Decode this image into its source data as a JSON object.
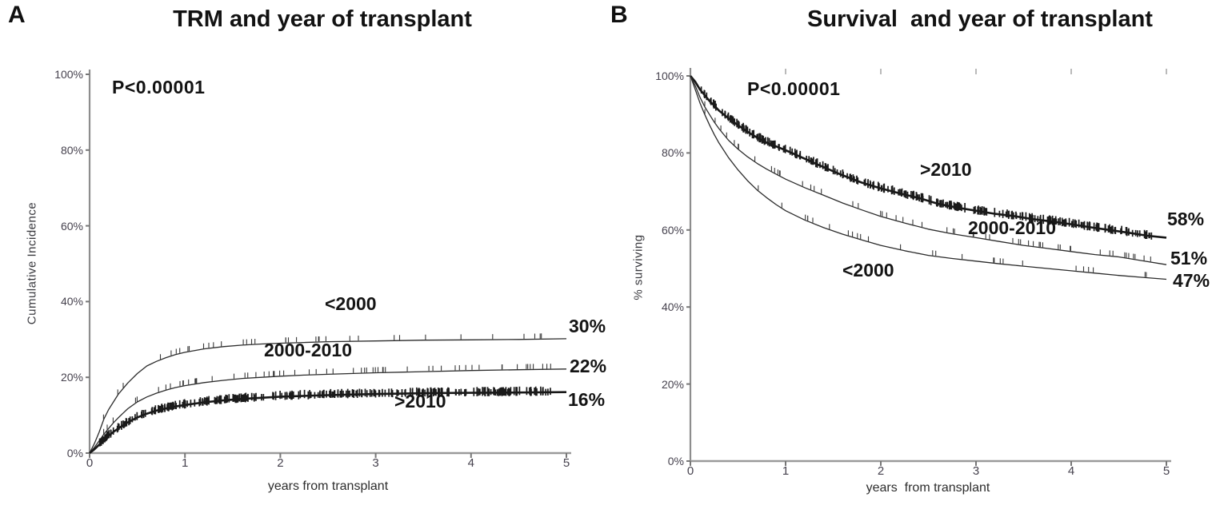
{
  "chart_data": [
    {
      "type": "line",
      "panel_label": "A",
      "title": "TRM and year of transplant",
      "subtitle": "P<0.00001",
      "xlabel": "years from transplant",
      "ylabel": "Cumulative Incidence",
      "xlim": [
        0,
        5
      ],
      "ylim": [
        0,
        100
      ],
      "x_ticks": [
        0,
        1,
        2,
        3,
        4,
        5
      ],
      "x_tick_labels": [
        "0",
        "1",
        "2",
        "3",
        "4",
        "5"
      ],
      "y_ticks": [
        0,
        20,
        40,
        60,
        80,
        100
      ],
      "y_tick_labels": [
        "0%",
        "20%",
        "40%",
        "60%",
        "80%",
        "100%"
      ],
      "grid": false,
      "top_ticks": false,
      "legend_position": "inline-labels",
      "series": [
        {
          "name": "<2000",
          "end_label": "30%",
          "end_value": 30,
          "censor_marks": "sparse",
          "points": [
            [
              0,
              0
            ],
            [
              0.05,
              2.5
            ],
            [
              0.1,
              5.5
            ],
            [
              0.15,
              9
            ],
            [
              0.2,
              11.5
            ],
            [
              0.25,
              13.5
            ],
            [
              0.3,
              15.5
            ],
            [
              0.35,
              17
            ],
            [
              0.4,
              18.5
            ],
            [
              0.5,
              21
            ],
            [
              0.6,
              23
            ],
            [
              0.7,
              24.2
            ],
            [
              0.8,
              25.2
            ],
            [
              0.9,
              26
            ],
            [
              1,
              26.6
            ],
            [
              1.2,
              27.5
            ],
            [
              1.4,
              28.1
            ],
            [
              1.6,
              28.5
            ],
            [
              1.8,
              28.8
            ],
            [
              2,
              29
            ],
            [
              2.25,
              29.2
            ],
            [
              2.5,
              29.4
            ],
            [
              3,
              29.6
            ],
            [
              3.5,
              29.8
            ],
            [
              4,
              29.9
            ],
            [
              4.5,
              30
            ],
            [
              5,
              30.2
            ]
          ]
        },
        {
          "name": "2000-2010",
          "end_label": "22%",
          "end_value": 22,
          "censor_marks": "sparse",
          "points": [
            [
              0,
              0
            ],
            [
              0.05,
              1.5
            ],
            [
              0.1,
              3.2
            ],
            [
              0.15,
              5
            ],
            [
              0.2,
              6.5
            ],
            [
              0.25,
              8
            ],
            [
              0.3,
              9.3
            ],
            [
              0.35,
              10.5
            ],
            [
              0.4,
              11.7
            ],
            [
              0.5,
              13.5
            ],
            [
              0.6,
              14.8
            ],
            [
              0.7,
              15.8
            ],
            [
              0.8,
              16.6
            ],
            [
              0.9,
              17.3
            ],
            [
              1,
              17.8
            ],
            [
              1.2,
              18.6
            ],
            [
              1.4,
              19.2
            ],
            [
              1.6,
              19.7
            ],
            [
              1.8,
              20
            ],
            [
              2,
              20.3
            ],
            [
              2.25,
              20.6
            ],
            [
              2.5,
              20.8
            ],
            [
              3,
              21.2
            ],
            [
              3.5,
              21.5
            ],
            [
              4,
              21.8
            ],
            [
              4.5,
              22
            ],
            [
              5,
              22.2
            ]
          ]
        },
        {
          "name": ">2010",
          "end_label": "16%",
          "end_value": 16,
          "censor_marks": "dense",
          "points": [
            [
              0,
              0
            ],
            [
              0.05,
              1
            ],
            [
              0.1,
              2.2
            ],
            [
              0.15,
              3.5
            ],
            [
              0.2,
              4.6
            ],
            [
              0.25,
              5.6
            ],
            [
              0.3,
              6.5
            ],
            [
              0.35,
              7.3
            ],
            [
              0.4,
              8.1
            ],
            [
              0.5,
              9.4
            ],
            [
              0.6,
              10.4
            ],
            [
              0.7,
              11.2
            ],
            [
              0.8,
              11.8
            ],
            [
              0.9,
              12.3
            ],
            [
              1,
              12.7
            ],
            [
              1.2,
              13.4
            ],
            [
              1.4,
              13.9
            ],
            [
              1.6,
              14.3
            ],
            [
              1.8,
              14.6
            ],
            [
              2,
              14.9
            ],
            [
              2.25,
              15.1
            ],
            [
              2.5,
              15.3
            ],
            [
              3,
              15.6
            ],
            [
              3.5,
              15.8
            ],
            [
              4,
              15.9
            ],
            [
              4.5,
              16
            ],
            [
              5,
              16.1
            ]
          ]
        }
      ]
    },
    {
      "type": "line",
      "panel_label": "B",
      "title": "Survival  and year of transplant",
      "subtitle": "P<0.00001",
      "xlabel": "years  from transplant",
      "ylabel": "% surviving",
      "xlim": [
        0,
        5
      ],
      "ylim": [
        0,
        100
      ],
      "x_ticks": [
        0,
        1,
        2,
        3,
        4,
        5
      ],
      "x_tick_labels": [
        "0",
        "1",
        "2",
        "3",
        "4",
        "5"
      ],
      "y_ticks": [
        0,
        20,
        40,
        60,
        80,
        100
      ],
      "y_tick_labels": [
        "0%",
        "20%",
        "40%",
        "60%",
        "80%",
        "100%"
      ],
      "grid": false,
      "top_ticks": true,
      "legend_position": "inline-labels",
      "series": [
        {
          "name": ">2010",
          "end_label": "58%",
          "end_value": 58,
          "censor_marks": "dense",
          "points": [
            [
              0,
              100
            ],
            [
              0.05,
              98.5
            ],
            [
              0.1,
              96.5
            ],
            [
              0.15,
              95
            ],
            [
              0.2,
              93.5
            ],
            [
              0.25,
              92.3
            ],
            [
              0.3,
              91
            ],
            [
              0.4,
              89
            ],
            [
              0.5,
              87.2
            ],
            [
              0.6,
              85.5
            ],
            [
              0.7,
              84
            ],
            [
              0.8,
              82.7
            ],
            [
              0.9,
              81.7
            ],
            [
              1,
              80.7
            ],
            [
              1.2,
              78.5
            ],
            [
              1.4,
              76.3
            ],
            [
              1.6,
              74.2
            ],
            [
              1.8,
              72.3
            ],
            [
              2,
              70.8
            ],
            [
              2.2,
              69.5
            ],
            [
              2.4,
              68.3
            ],
            [
              2.6,
              66.8
            ],
            [
              2.8,
              65.8
            ],
            [
              3,
              65
            ],
            [
              3.2,
              64.2
            ],
            [
              3.4,
              63.6
            ],
            [
              3.6,
              62.8
            ],
            [
              3.8,
              62.2
            ],
            [
              4,
              61.5
            ],
            [
              4.2,
              60.7
            ],
            [
              4.4,
              60
            ],
            [
              4.6,
              59.3
            ],
            [
              4.8,
              58.5
            ],
            [
              5,
              58
            ]
          ]
        },
        {
          "name": "2000-2010",
          "end_label": "51%",
          "end_value": 51,
          "censor_marks": "sparse",
          "points": [
            [
              0,
              100
            ],
            [
              0.05,
              97.5
            ],
            [
              0.1,
              94.5
            ],
            [
              0.15,
              92
            ],
            [
              0.2,
              90
            ],
            [
              0.25,
              88
            ],
            [
              0.3,
              86.3
            ],
            [
              0.4,
              83.3
            ],
            [
              0.5,
              81
            ],
            [
              0.6,
              79
            ],
            [
              0.7,
              77.3
            ],
            [
              0.8,
              75.8
            ],
            [
              0.9,
              74.5
            ],
            [
              1,
              73.2
            ],
            [
              1.2,
              71
            ],
            [
              1.4,
              69
            ],
            [
              1.6,
              67
            ],
            [
              1.8,
              65.2
            ],
            [
              2,
              63.5
            ],
            [
              2.25,
              61.8
            ],
            [
              2.5,
              60.2
            ],
            [
              2.75,
              59
            ],
            [
              3,
              58
            ],
            [
              3.25,
              57
            ],
            [
              3.5,
              56
            ],
            [
              3.75,
              55.2
            ],
            [
              4,
              54.4
            ],
            [
              4.25,
              53.6
            ],
            [
              4.5,
              53
            ],
            [
              4.75,
              52
            ],
            [
              5,
              51
            ]
          ]
        },
        {
          "name": "<2000",
          "end_label": "47%",
          "end_value": 47,
          "censor_marks": "sparse",
          "points": [
            [
              0,
              100
            ],
            [
              0.05,
              96.5
            ],
            [
              0.1,
              93
            ],
            [
              0.15,
              90
            ],
            [
              0.2,
              87.3
            ],
            [
              0.25,
              84.8
            ],
            [
              0.3,
              82.6
            ],
            [
              0.4,
              78.8
            ],
            [
              0.5,
              75.6
            ],
            [
              0.6,
              72.8
            ],
            [
              0.7,
              70.4
            ],
            [
              0.8,
              68.4
            ],
            [
              0.9,
              66.6
            ],
            [
              1,
              65
            ],
            [
              1.2,
              62.6
            ],
            [
              1.4,
              60.6
            ],
            [
              1.6,
              58.9
            ],
            [
              1.8,
              57.4
            ],
            [
              2,
              56
            ],
            [
              2.25,
              54.6
            ],
            [
              2.5,
              53.4
            ],
            [
              2.75,
              52.6
            ],
            [
              3,
              51.9
            ],
            [
              3.25,
              51.2
            ],
            [
              3.5,
              50.6
            ],
            [
              3.75,
              50
            ],
            [
              4,
              49.4
            ],
            [
              4.25,
              48.8
            ],
            [
              4.5,
              48.2
            ],
            [
              4.75,
              47.7
            ],
            [
              5,
              47.2
            ]
          ]
        }
      ]
    }
  ]
}
